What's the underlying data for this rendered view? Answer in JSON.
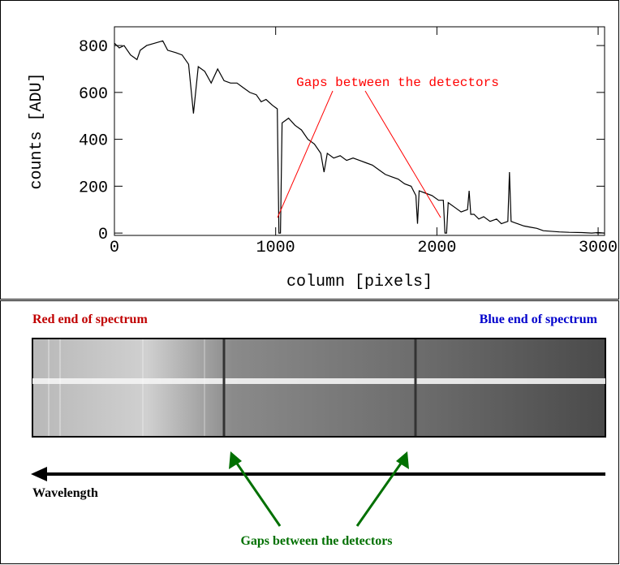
{
  "chart_data": {
    "type": "line",
    "xlabel": "column [pixels]",
    "ylabel": "counts [ADU]",
    "annotation": "Gaps between the detectors",
    "xlim": [
      0,
      3040
    ],
    "ylim": [
      -10,
      880
    ],
    "xticks": [
      0,
      1000,
      2000,
      3000
    ],
    "yticks": [
      0,
      200,
      400,
      600,
      800
    ],
    "color": "#000000",
    "annotation_color": "#ff0000",
    "x": [
      0,
      30,
      60,
      100,
      140,
      160,
      200,
      250,
      300,
      330,
      380,
      420,
      460,
      490,
      520,
      560,
      600,
      640,
      680,
      720,
      760,
      800,
      840,
      880,
      910,
      940,
      980,
      1010,
      1020,
      1030,
      1040,
      1080,
      1120,
      1160,
      1200,
      1240,
      1280,
      1300,
      1320,
      1360,
      1400,
      1440,
      1480,
      1520,
      1560,
      1600,
      1640,
      1680,
      1720,
      1760,
      1800,
      1840,
      1870,
      1880,
      1890,
      1930,
      1970,
      2010,
      2040,
      2050,
      2060,
      2070,
      2110,
      2150,
      2190,
      2200,
      2210,
      2230,
      2260,
      2290,
      2330,
      2370,
      2400,
      2440,
      2450,
      2460,
      2500,
      2540,
      2580,
      2620,
      2660,
      2700,
      2760,
      2820,
      2900,
      2960,
      3000,
      3040
    ],
    "values": [
      810,
      790,
      800,
      760,
      740,
      780,
      800,
      810,
      820,
      780,
      770,
      760,
      720,
      510,
      710,
      690,
      640,
      700,
      650,
      640,
      640,
      620,
      600,
      590,
      560,
      570,
      545,
      530,
      0,
      0,
      470,
      490,
      460,
      440,
      400,
      380,
      340,
      260,
      340,
      320,
      330,
      310,
      320,
      310,
      300,
      290,
      270,
      250,
      240,
      230,
      210,
      200,
      160,
      40,
      180,
      170,
      160,
      140,
      140,
      0,
      0,
      130,
      110,
      90,
      100,
      180,
      80,
      80,
      60,
      70,
      50,
      60,
      40,
      50,
      260,
      50,
      40,
      30,
      25,
      20,
      10,
      8,
      5,
      3,
      2,
      0,
      2,
      0
    ]
  },
  "image_panel": {
    "red_label": "Red end of spectrum",
    "blue_label": "Blue end of spectrum",
    "arrow_label": "Wavelength",
    "gaps_label": "Gaps between the detectors"
  }
}
